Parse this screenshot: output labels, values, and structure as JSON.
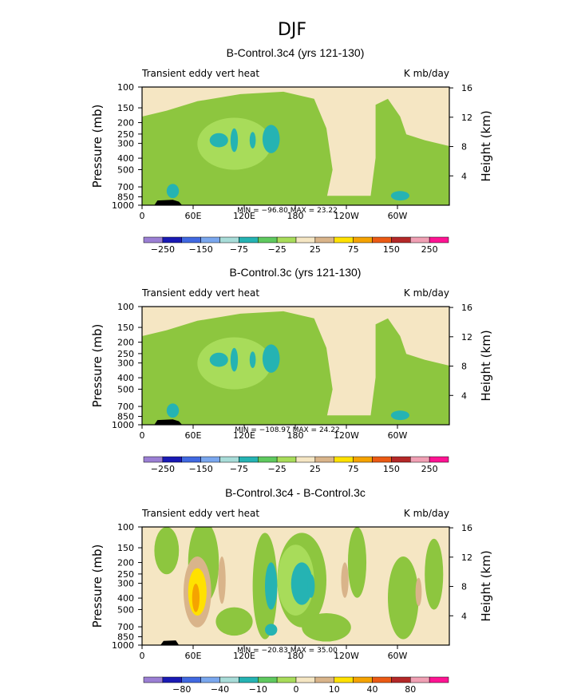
{
  "figure_title": "DJF",
  "chart_data": [
    {
      "type": "heatmap",
      "title": "B-Control.3c4 (yrs 121-130)",
      "subtitle_left": "Transient eddy vert heat",
      "subtitle_right": "K mb/day",
      "ylabel": "Pressure (mb)",
      "ylabel_right": "Height (km)",
      "x_ticks": [
        "0",
        "60E",
        "120E",
        "180",
        "120W",
        "60W"
      ],
      "y_ticks": [
        "100",
        "150",
        "200",
        "250",
        "300",
        "400",
        "500",
        "700",
        "850",
        "1000"
      ],
      "y_ticks_right": [
        "16",
        "12",
        "8",
        "4"
      ],
      "stats": "MIN = −96.80   MAX =  23.22",
      "colorbar_labels": [
        "−250",
        "−150",
        "−75",
        "−25",
        "25",
        "75",
        "150",
        "250"
      ],
      "colorbar_colors": [
        "#9b7fd4",
        "#1a1ab4",
        "#4169e1",
        "#7aa7ee",
        "#a8dcd8",
        "#25b3b3",
        "#5fc95f",
        "#a8dc5a",
        "#f5e6c3",
        "#d9b48a",
        "#ffe100",
        "#f5a300",
        "#eb5a14",
        "#b42828",
        "#f0a0b4",
        "#ff1493"
      ],
      "field": {
        "background": "#f5e6c3",
        "level_-25": "#8dc63f",
        "level_-75": "#a8dc5a",
        "level_-150": "#25b3b3",
        "level_-250": "#4169e1"
      }
    },
    {
      "type": "heatmap",
      "title": "B-Control.3c (yrs 121-130)",
      "subtitle_left": "Transient eddy vert heat",
      "subtitle_right": "K mb/day",
      "ylabel": "Pressure (mb)",
      "ylabel_right": "Height (km)",
      "x_ticks": [
        "0",
        "60E",
        "120E",
        "180",
        "120W",
        "60W"
      ],
      "y_ticks": [
        "100",
        "150",
        "200",
        "250",
        "300",
        "400",
        "500",
        "700",
        "850",
        "1000"
      ],
      "y_ticks_right": [
        "16",
        "12",
        "8",
        "4"
      ],
      "stats": "MIN = −108.97   MAX =  24.22",
      "colorbar_labels": [
        "−250",
        "−150",
        "−75",
        "−25",
        "25",
        "75",
        "150",
        "250"
      ],
      "colorbar_colors": [
        "#9b7fd4",
        "#1a1ab4",
        "#4169e1",
        "#7aa7ee",
        "#a8dcd8",
        "#25b3b3",
        "#5fc95f",
        "#a8dc5a",
        "#f5e6c3",
        "#d9b48a",
        "#ffe100",
        "#f5a300",
        "#eb5a14",
        "#b42828",
        "#f0a0b4",
        "#ff1493"
      ],
      "field": {
        "background": "#f5e6c3",
        "level_-25": "#8dc63f",
        "level_-75": "#a8dc5a",
        "level_-150": "#25b3b3",
        "level_-250": "#4169e1"
      }
    },
    {
      "type": "heatmap",
      "title": "B-Control.3c4 - B-Control.3c",
      "subtitle_left": "Transient eddy vert heat",
      "subtitle_right": "K mb/day",
      "ylabel": "Pressure (mb)",
      "ylabel_right": "Height (km)",
      "x_ticks": [
        "0",
        "60E",
        "120E",
        "180",
        "120W",
        "60W"
      ],
      "y_ticks": [
        "100",
        "150",
        "200",
        "250",
        "300",
        "400",
        "500",
        "700",
        "850",
        "1000"
      ],
      "y_ticks_right": [
        "16",
        "12",
        "8",
        "4"
      ],
      "stats": "MIN = −20.83   MAX =  35.00",
      "colorbar_labels": [
        "−80",
        "−40",
        "−10",
        "0",
        "10",
        "40",
        "80"
      ],
      "colorbar_colors": [
        "#9b7fd4",
        "#1a1ab4",
        "#4169e1",
        "#7aa7ee",
        "#a8dcd8",
        "#25b3b3",
        "#5fc95f",
        "#a8dc5a",
        "#f5e6c3",
        "#d9b48a",
        "#ffe100",
        "#f5a300",
        "#eb5a14",
        "#b42828",
        "#f0a0b4",
        "#ff1493"
      ],
      "field": {
        "background": "#f5e6c3",
        "level_neg": "#8dc63f",
        "level_neg2": "#a8dc5a",
        "level_neg3": "#25b3b3",
        "level_pos": "#d9b48a",
        "level_pos2": "#ffe100",
        "level_pos3": "#f5a300"
      }
    }
  ]
}
